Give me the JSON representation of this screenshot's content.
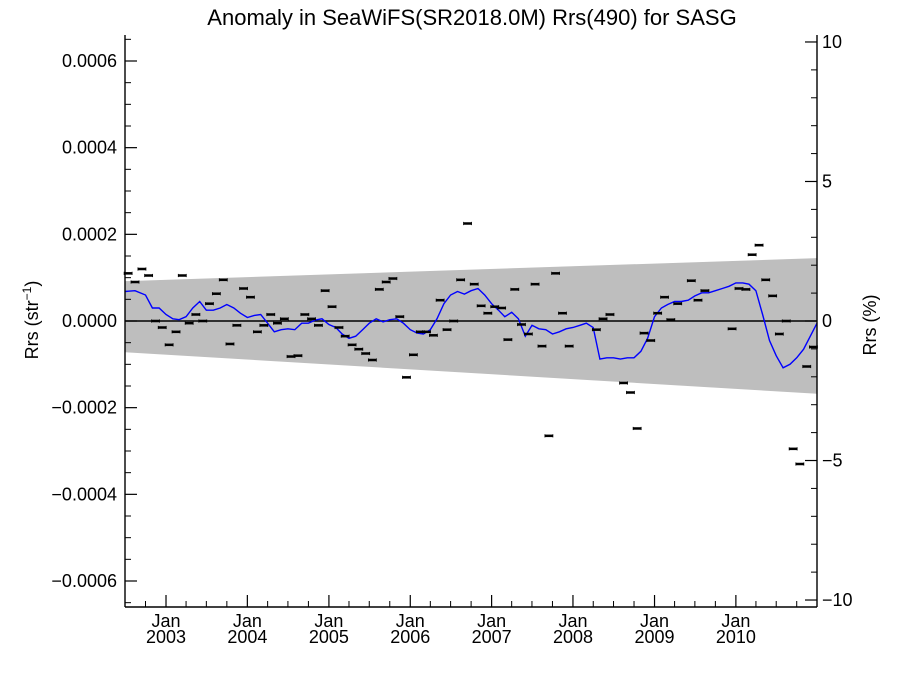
{
  "chart_data": {
    "type": "scatter",
    "title": "Anomaly in SeaWiFS(SR2018.0M) Rrs(490) for SASG",
    "ylabel_left": "Rrs (str",
    "ylabel_left_sup": "−1",
    "ylabel_left_close": ")",
    "ylabel_right": "Rrs (%)",
    "xlim": [
      "2002-07-01",
      "2010-12-31"
    ],
    "ylim_left": [
      -0.00066,
      0.00066
    ],
    "ylim_right": [
      -10.25,
      10.25
    ],
    "y_ticks_left": [
      -0.0006,
      -0.0004,
      -0.0002,
      0.0,
      0.0002,
      0.0004,
      0.0006
    ],
    "y_tick_labels_left": [
      "−0.0006",
      "−0.0004",
      "−0.0002",
      "0.0000",
      "0.0002",
      "0.0004",
      "0.0006"
    ],
    "y_ticks_right": [
      -10,
      -5,
      0,
      5,
      10
    ],
    "y_tick_labels_right": [
      "−10",
      "−5",
      "0",
      "5",
      "10"
    ],
    "x_ticks": [
      {
        "date": "2003-01-01",
        "month": "Jan",
        "year": "2003"
      },
      {
        "date": "2004-01-01",
        "month": "Jan",
        "year": "2004"
      },
      {
        "date": "2005-01-01",
        "month": "Jan",
        "year": "2005"
      },
      {
        "date": "2006-01-01",
        "month": "Jan",
        "year": "2006"
      },
      {
        "date": "2007-01-01",
        "month": "Jan",
        "year": "2007"
      },
      {
        "date": "2008-01-01",
        "month": "Jan",
        "year": "2008"
      },
      {
        "date": "2009-01-01",
        "month": "Jan",
        "year": "2009"
      },
      {
        "date": "2010-01-01",
        "month": "Jan",
        "year": "2010"
      }
    ],
    "zero_line": 0,
    "uncertainty_band": {
      "color": "#bebebe",
      "start": {
        "date": "2002-07-01",
        "upper": 9.2e-05,
        "lower": -7.2e-05
      },
      "end": {
        "date": "2010-12-31",
        "upper": 0.000145,
        "lower": -0.000168
      }
    },
    "colors": {
      "points": "#000000",
      "smoothed": "#0000ff",
      "band": "#bebebe"
    },
    "points": [
      {
        "date": "2002-07-15",
        "y": 0.00011
      },
      {
        "date": "2002-08-15",
        "y": 9e-05
      },
      {
        "date": "2002-09-15",
        "y": 0.00012
      },
      {
        "date": "2002-10-15",
        "y": 0.000105
      },
      {
        "date": "2002-11-15",
        "y": 0.0
      },
      {
        "date": "2002-12-15",
        "y": -1.5e-05
      },
      {
        "date": "2003-01-15",
        "y": -5.5e-05
      },
      {
        "date": "2003-02-15",
        "y": -2.5e-05
      },
      {
        "date": "2003-03-15",
        "y": 0.000105
      },
      {
        "date": "2003-04-15",
        "y": -5e-06
      },
      {
        "date": "2003-05-15",
        "y": 1.5e-05
      },
      {
        "date": "2003-06-15",
        "y": 0.0
      },
      {
        "date": "2003-07-15",
        "y": 4e-05
      },
      {
        "date": "2003-08-15",
        "y": 6.3e-05
      },
      {
        "date": "2003-09-15",
        "y": 9.5e-05
      },
      {
        "date": "2003-10-15",
        "y": -5.3e-05
      },
      {
        "date": "2003-11-15",
        "y": -1e-05
      },
      {
        "date": "2003-12-15",
        "y": 7.5e-05
      },
      {
        "date": "2004-01-15",
        "y": 5.5e-05
      },
      {
        "date": "2004-02-15",
        "y": -2.5e-05
      },
      {
        "date": "2004-03-15",
        "y": -1e-05
      },
      {
        "date": "2004-04-15",
        "y": 1.5e-05
      },
      {
        "date": "2004-05-15",
        "y": -5e-06
      },
      {
        "date": "2004-06-15",
        "y": 5e-06
      },
      {
        "date": "2004-07-15",
        "y": -8.2e-05
      },
      {
        "date": "2004-08-15",
        "y": -8e-05
      },
      {
        "date": "2004-09-15",
        "y": 1.5e-05
      },
      {
        "date": "2004-10-15",
        "y": 5e-06
      },
      {
        "date": "2004-11-15",
        "y": -1e-05
      },
      {
        "date": "2004-12-15",
        "y": 7e-05
      },
      {
        "date": "2005-01-15",
        "y": 3.3e-05
      },
      {
        "date": "2005-02-15",
        "y": -1.5e-05
      },
      {
        "date": "2005-03-15",
        "y": -3.5e-05
      },
      {
        "date": "2005-04-15",
        "y": -5.5e-05
      },
      {
        "date": "2005-05-15",
        "y": -6.5e-05
      },
      {
        "date": "2005-06-15",
        "y": -7.5e-05
      },
      {
        "date": "2005-07-15",
        "y": -9e-05
      },
      {
        "date": "2005-08-15",
        "y": 7.3e-05
      },
      {
        "date": "2005-09-15",
        "y": 9e-05
      },
      {
        "date": "2005-10-15",
        "y": 9.8e-05
      },
      {
        "date": "2005-11-15",
        "y": 1e-05
      },
      {
        "date": "2005-12-15",
        "y": -0.00013
      },
      {
        "date": "2006-01-15",
        "y": -7.8e-05
      },
      {
        "date": "2006-02-15",
        "y": -2.5e-05
      },
      {
        "date": "2006-03-15",
        "y": -2.5e-05
      },
      {
        "date": "2006-04-15",
        "y": -3.3e-05
      },
      {
        "date": "2006-05-15",
        "y": 4.8e-05
      },
      {
        "date": "2006-06-15",
        "y": -2e-05
      },
      {
        "date": "2006-07-15",
        "y": 0.0
      },
      {
        "date": "2006-08-15",
        "y": 9.5e-05
      },
      {
        "date": "2006-09-15",
        "y": 0.000225
      },
      {
        "date": "2006-10-15",
        "y": 8.5e-05
      },
      {
        "date": "2006-11-15",
        "y": 3.5e-05
      },
      {
        "date": "2006-12-15",
        "y": 1.8e-05
      },
      {
        "date": "2007-01-15",
        "y": 3.3e-05
      },
      {
        "date": "2007-02-15",
        "y": 3e-05
      },
      {
        "date": "2007-03-15",
        "y": -4.3e-05
      },
      {
        "date": "2007-04-15",
        "y": 7.3e-05
      },
      {
        "date": "2007-05-15",
        "y": -8e-06
      },
      {
        "date": "2007-06-15",
        "y": -3e-05
      },
      {
        "date": "2007-07-15",
        "y": 8.5e-05
      },
      {
        "date": "2007-08-15",
        "y": -5.8e-05
      },
      {
        "date": "2007-09-15",
        "y": -0.000265
      },
      {
        "date": "2007-10-15",
        "y": 0.00011
      },
      {
        "date": "2007-11-15",
        "y": 1.8e-05
      },
      {
        "date": "2007-12-15",
        "y": -5.8e-05
      },
      {
        "date": "2008-04-15",
        "y": -2e-05
      },
      {
        "date": "2008-05-15",
        "y": 5e-06
      },
      {
        "date": "2008-06-15",
        "y": 1.5e-05
      },
      {
        "date": "2008-08-15",
        "y": -0.000143
      },
      {
        "date": "2008-09-15",
        "y": -0.000165
      },
      {
        "date": "2008-10-15",
        "y": -0.000248
      },
      {
        "date": "2008-11-15",
        "y": -2.8e-05
      },
      {
        "date": "2008-12-15",
        "y": -4.5e-05
      },
      {
        "date": "2009-01-15",
        "y": 1.8e-05
      },
      {
        "date": "2009-02-15",
        "y": 5.5e-05
      },
      {
        "date": "2009-03-15",
        "y": 3e-06
      },
      {
        "date": "2009-04-15",
        "y": 4e-05
      },
      {
        "date": "2009-06-15",
        "y": 9.3e-05
      },
      {
        "date": "2009-07-15",
        "y": 4.8e-05
      },
      {
        "date": "2009-08-15",
        "y": 7e-05
      },
      {
        "date": "2009-12-15",
        "y": -1.8e-05
      },
      {
        "date": "2010-01-15",
        "y": 7.5e-05
      },
      {
        "date": "2010-02-15",
        "y": 7.3e-05
      },
      {
        "date": "2010-03-15",
        "y": 0.000153
      },
      {
        "date": "2010-04-15",
        "y": 0.000175
      },
      {
        "date": "2010-05-15",
        "y": 9.5e-05
      },
      {
        "date": "2010-06-15",
        "y": 5.8e-05
      },
      {
        "date": "2010-07-15",
        "y": -3e-05
      },
      {
        "date": "2010-08-15",
        "y": 0.0
      },
      {
        "date": "2010-09-15",
        "y": -0.000295
      },
      {
        "date": "2010-10-15",
        "y": -0.00033
      },
      {
        "date": "2010-11-15",
        "y": -0.000105
      },
      {
        "date": "2010-12-15",
        "y": -6e-05
      }
    ],
    "smoothed": [
      {
        "date": "2002-07-01",
        "y": 6.8e-05
      },
      {
        "date": "2002-08-15",
        "y": 7e-05
      },
      {
        "date": "2002-10-01",
        "y": 6e-05
      },
      {
        "date": "2002-11-01",
        "y": 3e-05
      },
      {
        "date": "2002-12-01",
        "y": 3e-05
      },
      {
        "date": "2003-01-01",
        "y": 1.5e-05
      },
      {
        "date": "2003-02-01",
        "y": 5e-06
      },
      {
        "date": "2003-03-01",
        "y": 3e-06
      },
      {
        "date": "2003-04-01",
        "y": 1e-05
      },
      {
        "date": "2003-05-01",
        "y": 3e-05
      },
      {
        "date": "2003-06-01",
        "y": 4.5e-05
      },
      {
        "date": "2003-07-01",
        "y": 2.5e-05
      },
      {
        "date": "2003-08-01",
        "y": 2.5e-05
      },
      {
        "date": "2003-09-01",
        "y": 3e-05
      },
      {
        "date": "2003-10-01",
        "y": 3.8e-05
      },
      {
        "date": "2003-11-01",
        "y": 3e-05
      },
      {
        "date": "2003-12-01",
        "y": 1.8e-05
      },
      {
        "date": "2004-01-01",
        "y": 8e-06
      },
      {
        "date": "2004-02-01",
        "y": 1.3e-05
      },
      {
        "date": "2004-03-01",
        "y": 1.5e-05
      },
      {
        "date": "2004-04-01",
        "y": -5e-06
      },
      {
        "date": "2004-05-01",
        "y": -2.5e-05
      },
      {
        "date": "2004-06-01",
        "y": -2e-05
      },
      {
        "date": "2004-07-01",
        "y": -1.8e-05
      },
      {
        "date": "2004-08-01",
        "y": -2e-05
      },
      {
        "date": "2004-09-01",
        "y": -5e-06
      },
      {
        "date": "2004-10-01",
        "y": -5e-06
      },
      {
        "date": "2004-11-01",
        "y": 2e-06
      },
      {
        "date": "2004-12-01",
        "y": 5e-06
      },
      {
        "date": "2005-01-01",
        "y": -8e-06
      },
      {
        "date": "2005-02-01",
        "y": -1.5e-05
      },
      {
        "date": "2005-03-01",
        "y": -3e-05
      },
      {
        "date": "2005-04-01",
        "y": -4e-05
      },
      {
        "date": "2005-05-01",
        "y": -3.5e-05
      },
      {
        "date": "2005-06-01",
        "y": -2e-05
      },
      {
        "date": "2005-07-01",
        "y": -5e-06
      },
      {
        "date": "2005-08-01",
        "y": 5e-06
      },
      {
        "date": "2005-09-01",
        "y": -2e-06
      },
      {
        "date": "2005-10-01",
        "y": 3e-06
      },
      {
        "date": "2005-11-01",
        "y": 5e-06
      },
      {
        "date": "2005-12-01",
        "y": -5e-06
      },
      {
        "date": "2006-01-01",
        "y": -2e-05
      },
      {
        "date": "2006-02-01",
        "y": -2.8e-05
      },
      {
        "date": "2006-03-01",
        "y": -3e-05
      },
      {
        "date": "2006-04-01",
        "y": -2e-05
      },
      {
        "date": "2006-05-01",
        "y": 5e-06
      },
      {
        "date": "2006-06-01",
        "y": 4e-05
      },
      {
        "date": "2006-07-01",
        "y": 6e-05
      },
      {
        "date": "2006-08-01",
        "y": 6.8e-05
      },
      {
        "date": "2006-09-01",
        "y": 6.2e-05
      },
      {
        "date": "2006-10-01",
        "y": 7e-05
      },
      {
        "date": "2006-11-01",
        "y": 7.5e-05
      },
      {
        "date": "2006-12-01",
        "y": 6e-05
      },
      {
        "date": "2007-01-01",
        "y": 4e-05
      },
      {
        "date": "2007-02-01",
        "y": 2.5e-05
      },
      {
        "date": "2007-03-01",
        "y": 1e-05
      },
      {
        "date": "2007-04-01",
        "y": 2e-05
      },
      {
        "date": "2007-05-01",
        "y": 5e-06
      },
      {
        "date": "2007-06-01",
        "y": -3.5e-05
      },
      {
        "date": "2007-07-01",
        "y": -1e-05
      },
      {
        "date": "2007-08-01",
        "y": -1.8e-05
      },
      {
        "date": "2007-09-01",
        "y": -2e-05
      },
      {
        "date": "2007-10-01",
        "y": -3e-05
      },
      {
        "date": "2007-11-01",
        "y": -2.5e-05
      },
      {
        "date": "2007-12-01",
        "y": -1.8e-05
      },
      {
        "date": "2008-01-01",
        "y": -1.5e-05
      },
      {
        "date": "2008-02-01",
        "y": -1e-05
      },
      {
        "date": "2008-03-01",
        "y": -5e-06
      },
      {
        "date": "2008-04-01",
        "y": -1.5e-05
      },
      {
        "date": "2008-05-01",
        "y": -8.8e-05
      },
      {
        "date": "2008-06-01",
        "y": -8.5e-05
      },
      {
        "date": "2008-07-01",
        "y": -8.5e-05
      },
      {
        "date": "2008-08-01",
        "y": -8.8e-05
      },
      {
        "date": "2008-09-01",
        "y": -8.5e-05
      },
      {
        "date": "2008-10-01",
        "y": -8.5e-05
      },
      {
        "date": "2008-11-01",
        "y": -7e-05
      },
      {
        "date": "2008-12-01",
        "y": -4e-05
      },
      {
        "date": "2009-01-01",
        "y": 1e-05
      },
      {
        "date": "2009-02-01",
        "y": 3e-05
      },
      {
        "date": "2009-03-01",
        "y": 3.8e-05
      },
      {
        "date": "2009-04-01",
        "y": 4.5e-05
      },
      {
        "date": "2009-05-01",
        "y": 4.5e-05
      },
      {
        "date": "2009-06-01",
        "y": 4.8e-05
      },
      {
        "date": "2009-07-01",
        "y": 5.8e-05
      },
      {
        "date": "2009-08-01",
        "y": 6.5e-05
      },
      {
        "date": "2009-09-01",
        "y": 6.5e-05
      },
      {
        "date": "2009-10-01",
        "y": 7e-05
      },
      {
        "date": "2009-11-01",
        "y": 7.5e-05
      },
      {
        "date": "2009-12-01",
        "y": 8e-05
      },
      {
        "date": "2010-01-01",
        "y": 8.8e-05
      },
      {
        "date": "2010-02-01",
        "y": 8.8e-05
      },
      {
        "date": "2010-03-01",
        "y": 8.5e-05
      },
      {
        "date": "2010-04-01",
        "y": 7e-05
      },
      {
        "date": "2010-05-01",
        "y": 1.5e-05
      },
      {
        "date": "2010-06-01",
        "y": -4.5e-05
      },
      {
        "date": "2010-07-01",
        "y": -8e-05
      },
      {
        "date": "2010-08-01",
        "y": -0.000108
      },
      {
        "date": "2010-09-01",
        "y": -0.0001
      },
      {
        "date": "2010-10-01",
        "y": -8.5e-05
      },
      {
        "date": "2010-11-01",
        "y": -6.5e-05
      },
      {
        "date": "2010-12-31",
        "y": -5e-06
      }
    ]
  }
}
